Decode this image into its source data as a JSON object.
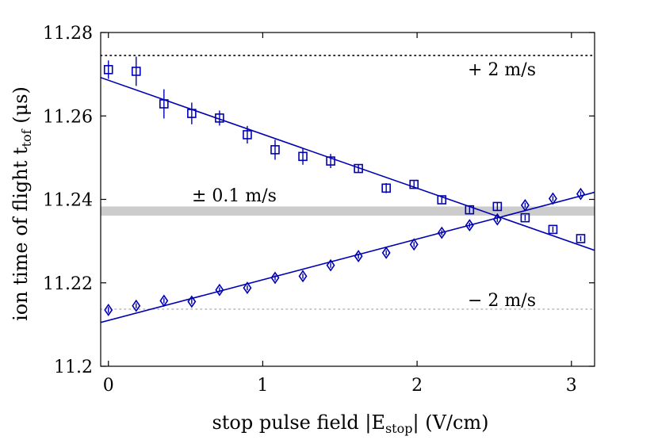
{
  "chart_data": {
    "type": "scatter",
    "xlabel": "stop pulse field |E",
    "xlabel_sub": "stop",
    "xlabel_tail": "| (V/cm)",
    "ylabel": "ion time of flight t",
    "ylabel_sub": "tof",
    "ylabel_tail": " (μs)",
    "xlim": [
      -0.05,
      3.15
    ],
    "ylim": [
      11.2,
      11.28
    ],
    "x_ticks": [
      0,
      1,
      2,
      3
    ],
    "x_tick_labels": [
      "0",
      "1",
      "2",
      "3"
    ],
    "y_ticks": [
      11.2,
      11.22,
      11.24,
      11.26,
      11.28
    ],
    "y_tick_labels": [
      "11.2",
      "11.22",
      "11.24",
      "11.26",
      "11.28"
    ],
    "series": [
      {
        "name": "squares",
        "marker": "square",
        "color": "#0000b3",
        "x": [
          0.0,
          0.18,
          0.36,
          0.54,
          0.72,
          0.9,
          1.08,
          1.26,
          1.44,
          1.62,
          1.8,
          1.98,
          2.16,
          2.34,
          2.52,
          2.7,
          2.88,
          3.06
        ],
        "y": [
          11.2711,
          11.2707,
          11.2629,
          11.2606,
          11.2595,
          11.2555,
          11.2519,
          11.2503,
          11.2492,
          11.2474,
          11.2427,
          11.2436,
          11.2399,
          11.2375,
          11.2383,
          11.2356,
          11.2328,
          11.2306
        ],
        "err": [
          0.0022,
          0.0035,
          0.0035,
          0.0026,
          0.0018,
          0.0021,
          0.0024,
          0.002,
          0.0017,
          0.001,
          0.0012,
          0.0008,
          0.0008,
          0.0008,
          0.0009,
          0.0007,
          0.0007,
          0.0006
        ]
      },
      {
        "name": "diamonds",
        "marker": "diamond",
        "color": "#0000b3",
        "x": [
          0.0,
          0.18,
          0.36,
          0.54,
          0.72,
          0.9,
          1.08,
          1.26,
          1.44,
          1.62,
          1.8,
          1.98,
          2.16,
          2.34,
          2.52,
          2.7,
          2.88,
          3.06
        ],
        "y": [
          11.2135,
          11.2145,
          11.2157,
          11.2155,
          11.2183,
          11.2188,
          11.2212,
          11.2216,
          11.2242,
          11.2264,
          11.2272,
          11.2292,
          11.232,
          11.2338,
          11.2352,
          11.2386,
          11.2402,
          11.2413
        ],
        "err": [
          0.0007,
          0.0006,
          0.0006,
          0.0006,
          0.0006,
          0.0006,
          0.0006,
          0.0006,
          0.0006,
          0.0006,
          0.0006,
          0.0006,
          0.0006,
          0.0006,
          0.0006,
          0.0006,
          0.0006,
          0.0006
        ]
      }
    ],
    "fit_lines": [
      {
        "name": "fit-decreasing",
        "x": [
          -0.05,
          3.15
        ],
        "y": [
          11.2692,
          11.2278
        ],
        "color": "#0000b3"
      },
      {
        "name": "fit-increasing",
        "x": [
          -0.05,
          3.15
        ],
        "y": [
          11.2105,
          11.2417
        ],
        "color": "#0000b3"
      }
    ],
    "reference_lines": [
      {
        "name": "plus-2",
        "y": 11.2745,
        "style": "dotted",
        "color": "#000000",
        "label": "+ 2 m/s"
      },
      {
        "name": "minus-2",
        "y": 11.2137,
        "style": "dotted",
        "color": "#bbbbbb",
        "label": "− 2 m/s"
      }
    ],
    "band": {
      "y": [
        11.2361,
        11.2383
      ],
      "color": "#cccccc",
      "label": "± 0.1 m/s"
    }
  }
}
